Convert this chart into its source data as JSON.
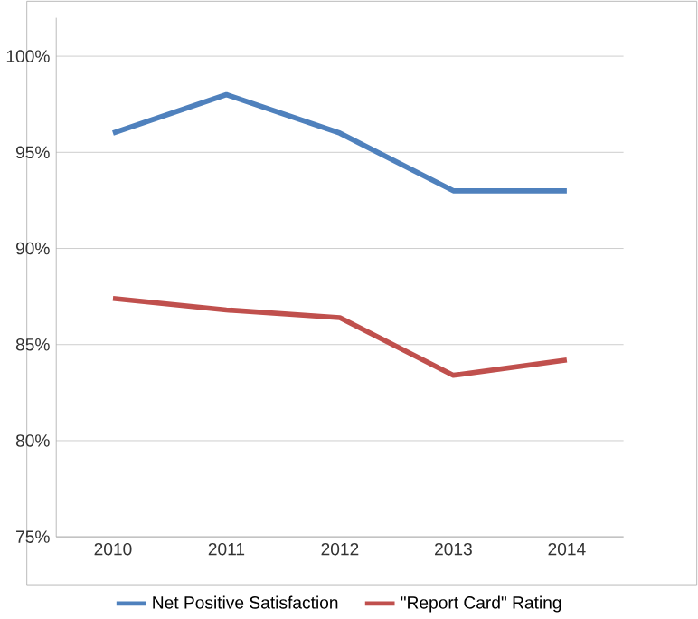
{
  "chart_data": {
    "type": "line",
    "categories": [
      "2010",
      "2011",
      "2012",
      "2013",
      "2014"
    ],
    "series": [
      {
        "name": "Net Positive Satisfaction",
        "color": "#4f81bd",
        "values": [
          96,
          98,
          96,
          93,
          93
        ]
      },
      {
        "name": "\"Report Card\" Rating",
        "color": "#c0504d",
        "values": [
          87.4,
          86.8,
          86.4,
          83.4,
          84.2
        ]
      }
    ],
    "ylim": [
      75,
      102
    ],
    "yticks": [
      {
        "value": 75,
        "label": "75%"
      },
      {
        "value": 80,
        "label": "80%"
      },
      {
        "value": 85,
        "label": "85%"
      },
      {
        "value": 90,
        "label": "90%"
      },
      {
        "value": 95,
        "label": "95%"
      },
      {
        "value": 100,
        "label": "100%"
      }
    ],
    "grid": "y",
    "legend": "bottom",
    "marker": "none",
    "line_style": "solid"
  }
}
